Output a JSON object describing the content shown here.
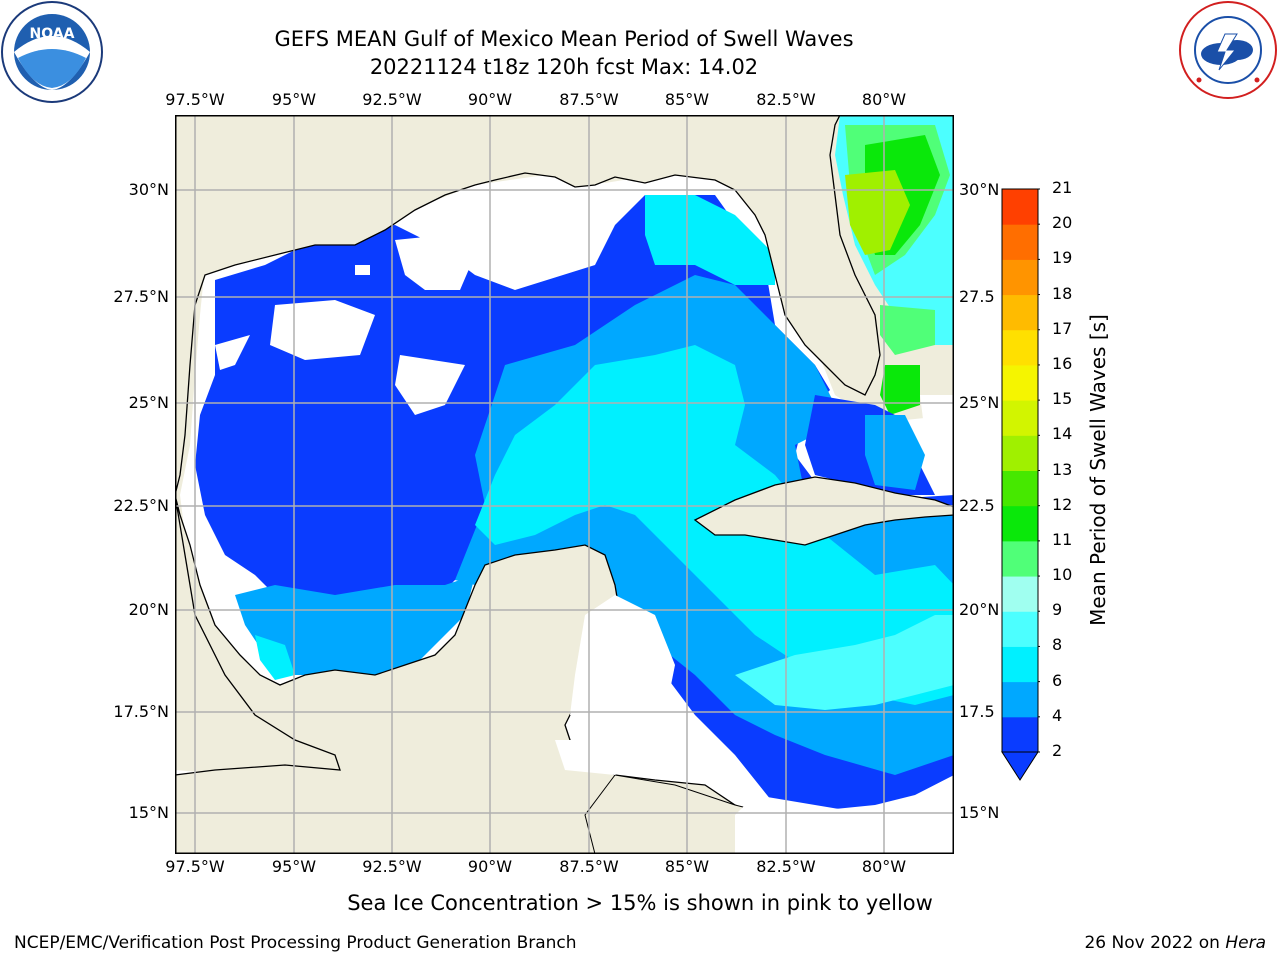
{
  "title": {
    "line1": "GEFS MEAN Gulf of Mexico Mean Period of Swell Waves",
    "line2": "20221124 t18z 120h fcst   Max: 14.02"
  },
  "logos": {
    "left": {
      "icon": "noaa-logo",
      "text": "NOAA",
      "ring_text": "NATIONAL OCEANIC AND ATMOSPHERIC ADMINISTRATION · U.S. DEPARTMENT OF COMMERCE"
    },
    "right": {
      "icon": "nws-logo",
      "ring_text": "NATIONAL WEATHER SERVICE"
    }
  },
  "map": {
    "lon_labels": [
      "97.5°W",
      "95°W",
      "92.5°W",
      "90°W",
      "87.5°W",
      "85°W",
      "82.5°W",
      "80°W"
    ],
    "lat_labels_left": [
      "30°N",
      "27.5°N",
      "25°N",
      "22.5°N",
      "20°N",
      "17.5°N",
      "15°N"
    ],
    "lat_labels_right": [
      "30°N",
      "27.5",
      "25°N",
      "22.5",
      "20°N",
      "17.5",
      "15°N"
    ],
    "colors": {
      "land": "#efeddc",
      "no_data": "#ffffff",
      "grid": "#b0b0b0",
      "coast": "#000000"
    }
  },
  "colorbar": {
    "label": "Mean Period of Swell Waves [s]",
    "ticks": [
      "2",
      "4",
      "6",
      "8",
      "9",
      "10",
      "11",
      "12",
      "13",
      "14",
      "15",
      "16",
      "17",
      "18",
      "19",
      "20",
      "21"
    ],
    "colors": [
      "#0a3cff",
      "#00a8ff",
      "#00f0ff",
      "#4cffff",
      "#a0fff0",
      "#50ff78",
      "#0ae80a",
      "#46e800",
      "#a0f000",
      "#d2f500",
      "#f5f500",
      "#ffe000",
      "#ffbb00",
      "#ff9400",
      "#ff6e00",
      "#ff4000",
      "#ff0000"
    ],
    "extend": "min"
  },
  "footer": {
    "caption": "Sea Ice Concentration > 15% is shown in pink to yellow",
    "left": "NCEP/EMC/Verification Post Processing Product Generation Branch",
    "right_date": "26 Nov 2022 on",
    "right_host": "Hera"
  }
}
